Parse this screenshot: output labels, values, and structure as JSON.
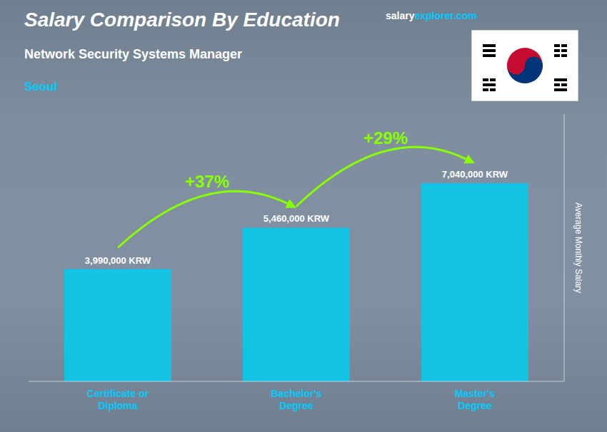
{
  "chart_data": {
    "type": "bar",
    "title": "Salary Comparison By Education",
    "subtitle": "Network Security Systems Manager",
    "city": "Seoul",
    "source": [
      "salary",
      "explorer.com"
    ],
    "ylabel": "Average Monthly Salary",
    "categories": [
      "Certificate or\nDiploma",
      "Bachelor's\nDegree",
      "Master's\nDegree"
    ],
    "values": [
      3990000,
      5460000,
      7040000
    ],
    "value_labels": [
      "3,990,000 KRW",
      "5,460,000 KRW",
      "7,040,000 KRW"
    ],
    "data_labels": true,
    "annotations": [
      {
        "text": "+37%",
        "color": "#88ff00"
      },
      {
        "text": "+29%",
        "color": "#88ff00"
      }
    ],
    "color": "#00ccee",
    "ylim": [
      0,
      9500000
    ],
    "grid": false,
    "tick_labels": "x"
  }
}
